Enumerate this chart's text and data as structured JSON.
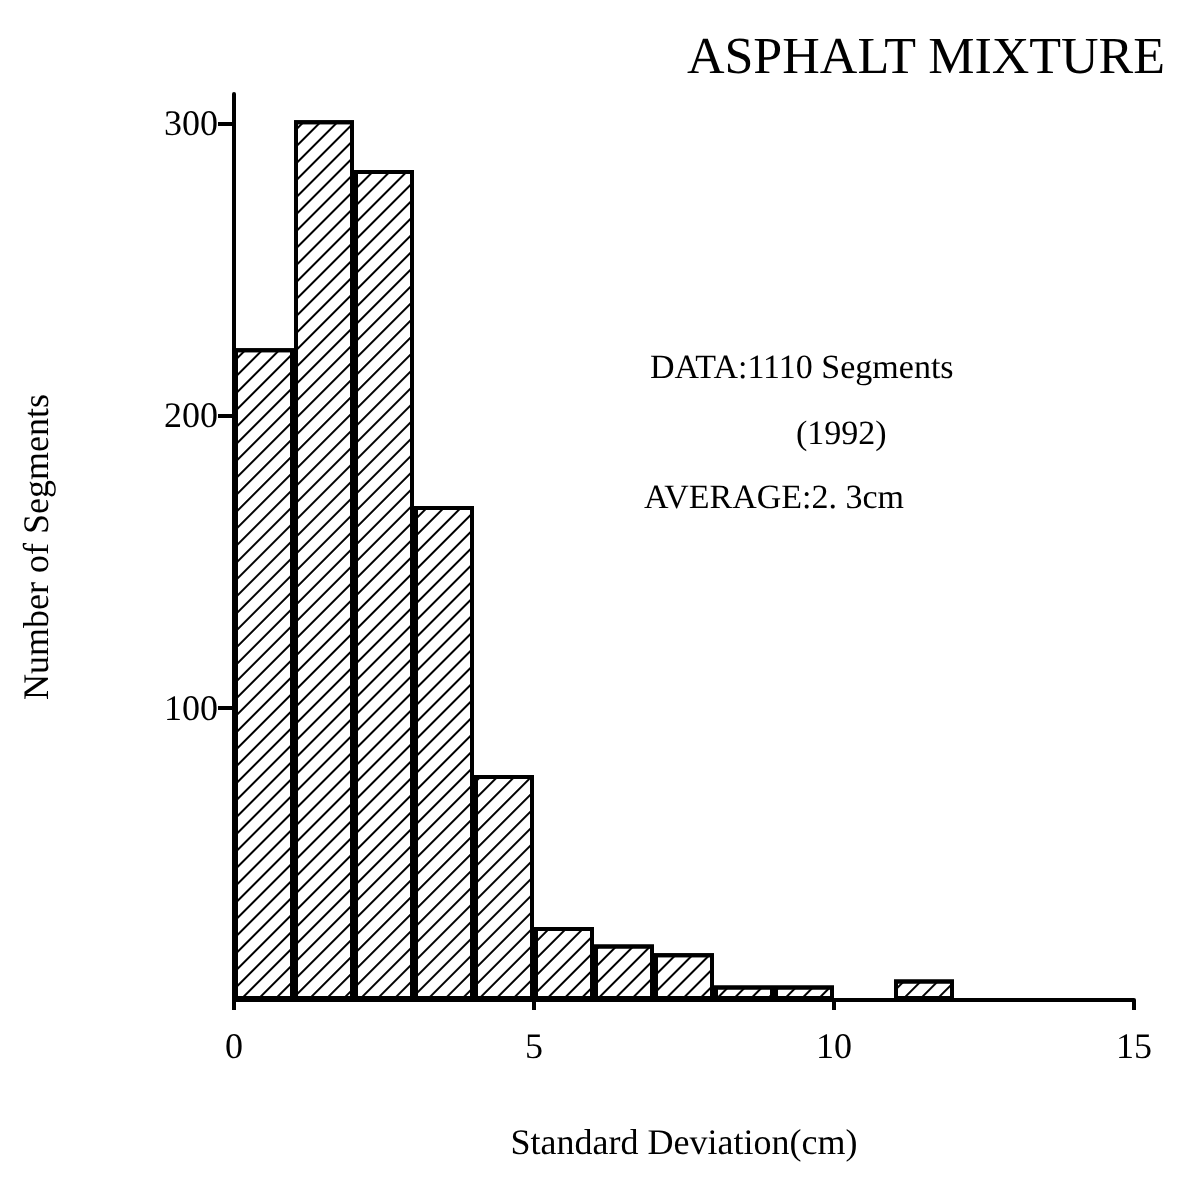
{
  "chart_data": {
    "type": "histogram",
    "title": "ASPHALT MIXTURE",
    "xlabel": "Standard Deviation(cm)",
    "ylabel": "Number of Segments",
    "annotations": [
      "DATA:1110 Segments",
      "(1992)",
      "AVERAGE:2. 3cm"
    ],
    "bins": [
      0,
      1,
      2,
      3,
      4,
      5,
      6,
      7,
      8,
      9,
      10,
      11,
      12,
      13,
      14,
      15
    ],
    "values": [
      223,
      301,
      284,
      169,
      77,
      25,
      19,
      16,
      5,
      5,
      0,
      7,
      0,
      0,
      0
    ],
    "color": "#000000",
    "xlim": [
      0,
      15
    ],
    "xticks": [
      0,
      5,
      10,
      15
    ],
    "ylim": [
      0,
      310
    ],
    "yticks": [
      100,
      200,
      300
    ],
    "grid": false
  }
}
